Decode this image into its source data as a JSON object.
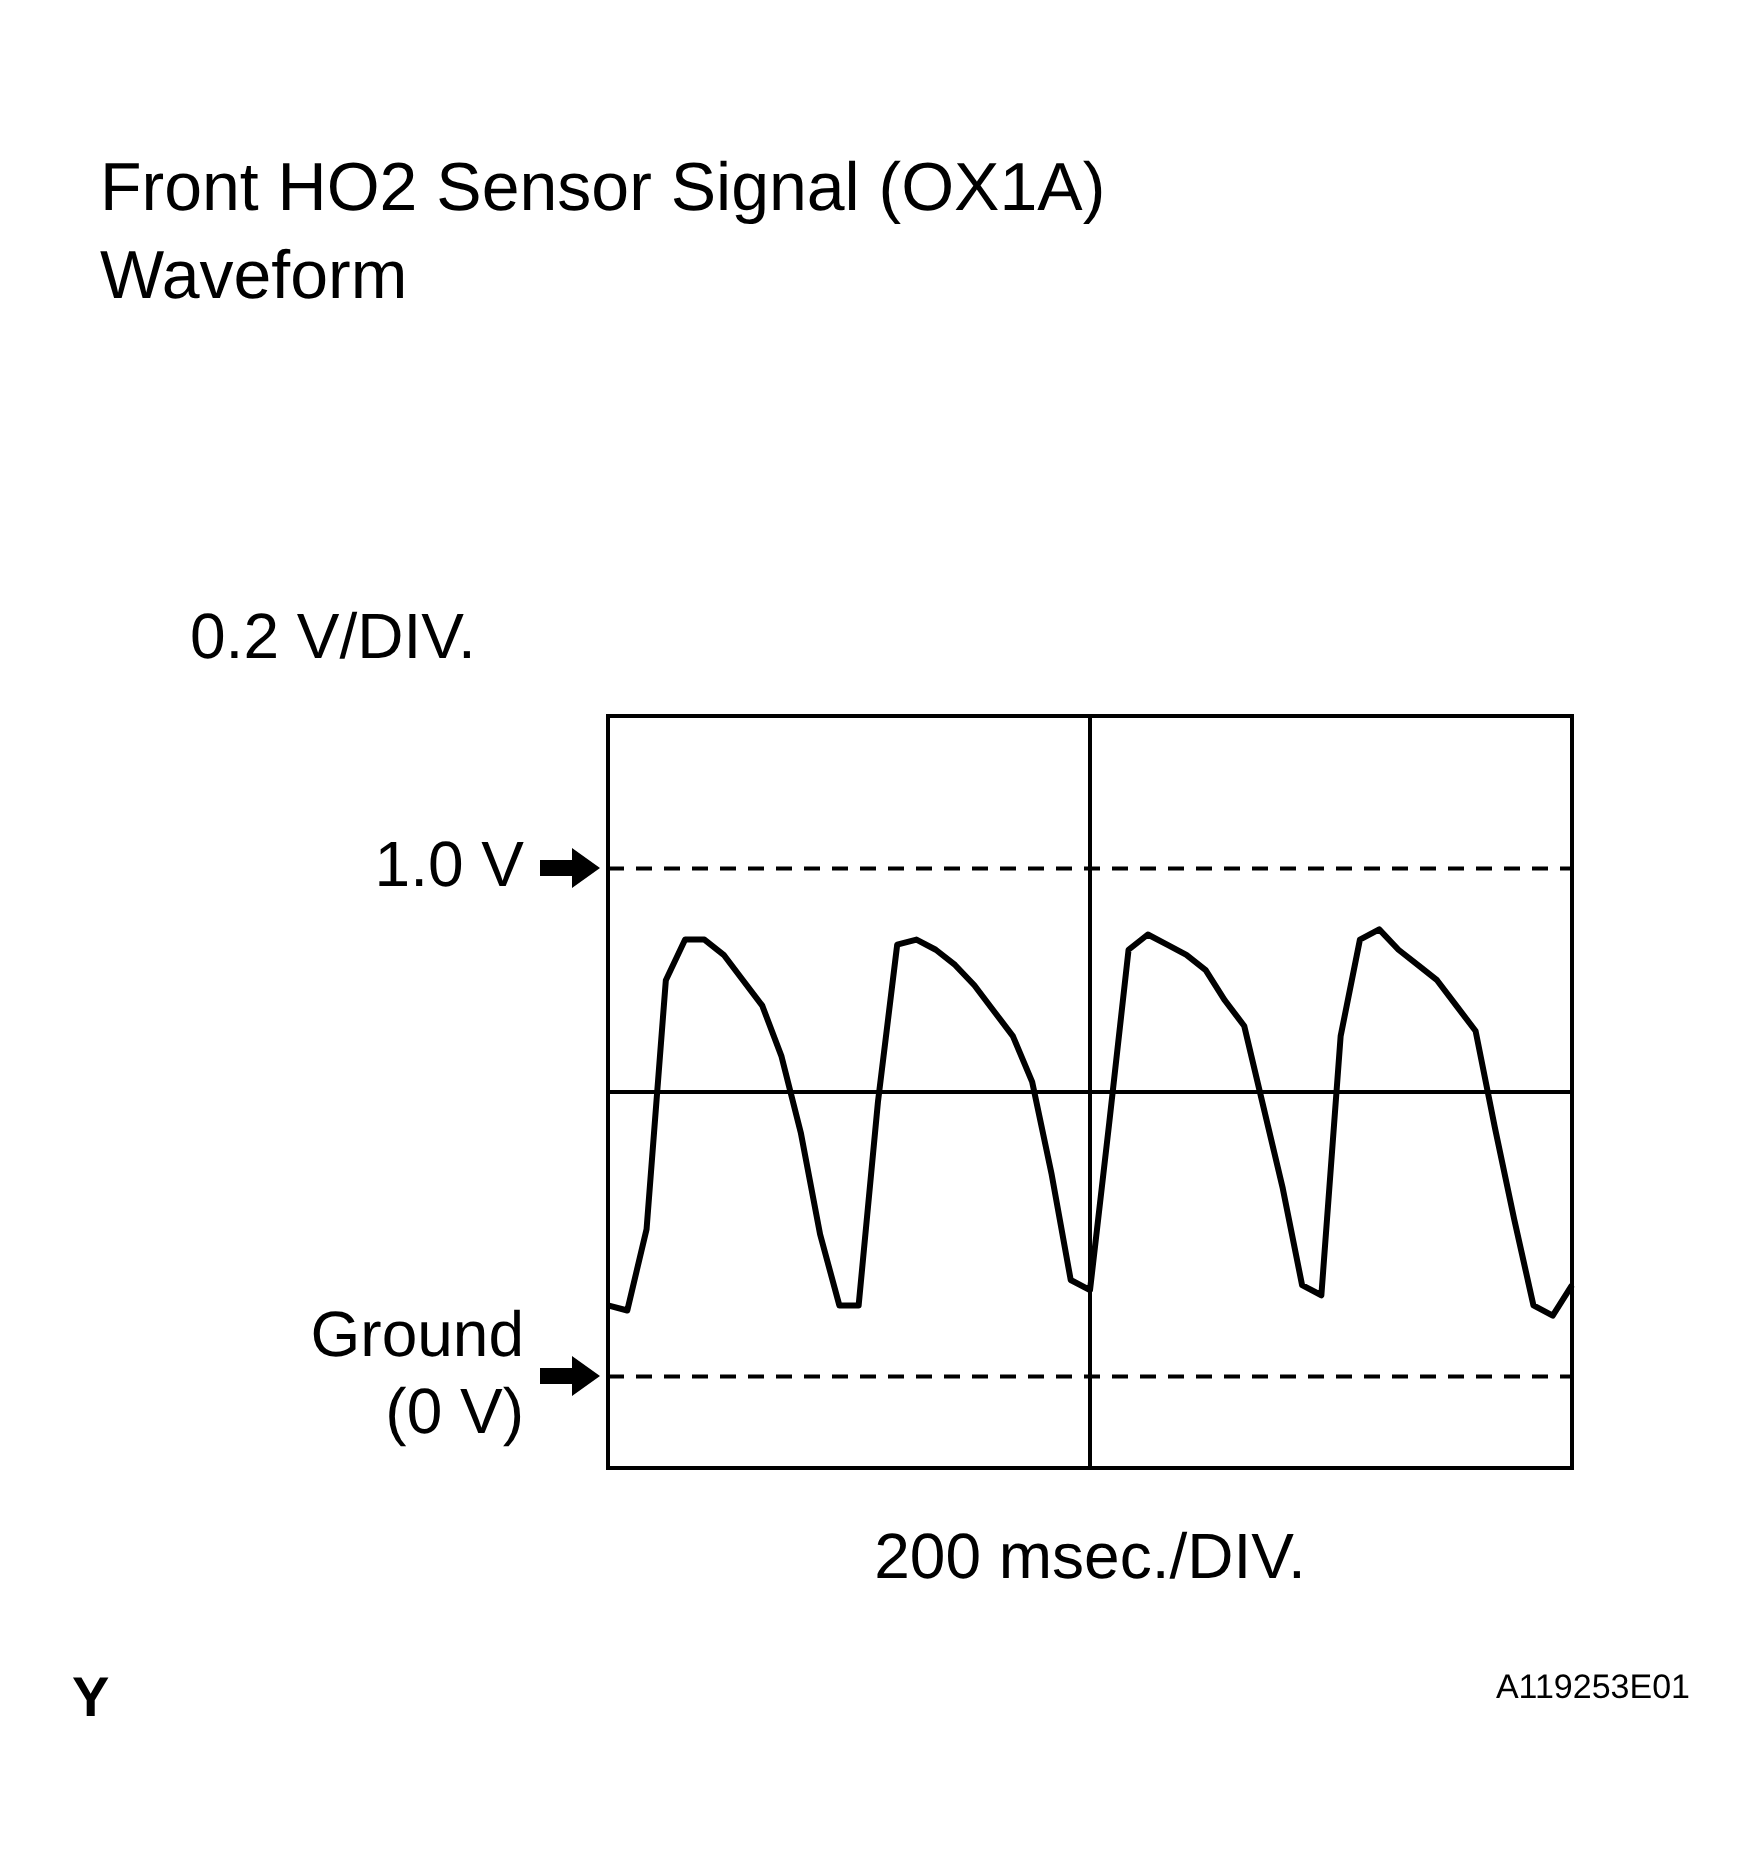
{
  "chart_data": {
    "type": "line",
    "title": "Front HO2 Sensor Signal (OX1A)\nWaveform",
    "ylabel": "0.2 V/DIV.",
    "xlabel": "200 msec./DIV.",
    "categories": [
      null,
      null,
      null,
      null,
      null,
      null,
      null,
      null,
      null,
      null,
      null,
      null,
      null,
      null,
      null,
      null,
      null,
      null,
      null,
      null,
      null,
      null,
      null,
      null,
      null,
      null,
      null,
      null,
      null,
      null,
      null,
      null,
      null,
      null,
      null,
      null,
      null,
      null,
      null,
      null,
      null,
      null,
      null,
      null,
      null,
      null,
      null,
      null,
      null,
      null,
      null
    ],
    "series": [
      {
        "color": "#000000",
        "values": [
          0.14,
          0.13,
          0.29,
          0.78,
          0.86,
          0.86,
          0.83,
          0.78,
          0.73,
          0.63,
          0.48,
          0.28,
          0.14,
          0.14,
          0.54,
          0.85,
          0.86,
          0.84,
          0.81,
          0.77,
          0.72,
          0.67,
          0.58,
          0.4,
          0.19,
          0.17,
          0.5,
          0.84,
          0.87,
          0.85,
          0.83,
          0.8,
          0.74,
          0.69,
          0.53,
          0.37,
          0.18,
          0.16,
          0.67,
          0.86,
          0.88,
          0.84,
          0.81,
          0.78,
          0.73,
          0.68,
          0.49,
          0.31,
          0.14,
          0.12,
          0.18
        ]
      }
    ],
    "ylim": [
      -0.18,
      1.3
    ],
    "yticks": [
      {
        "value": 0,
        "label": "Ground\n(0 V)"
      },
      {
        "value": 1.0,
        "label": "1.0 V"
      }
    ],
    "tick_labels": "y",
    "marker": "none",
    "line_style": "solid",
    "ref_lines": [
      {
        "axis": "y",
        "value": 1.0,
        "line_style": "dashed"
      },
      {
        "axis": "y",
        "value": 0,
        "line_style": "dashed"
      },
      {
        "axis": "y",
        "value": 0.56,
        "line_style": "solid"
      }
    ],
    "annotations": [
      "Y",
      "A119253E01"
    ]
  }
}
